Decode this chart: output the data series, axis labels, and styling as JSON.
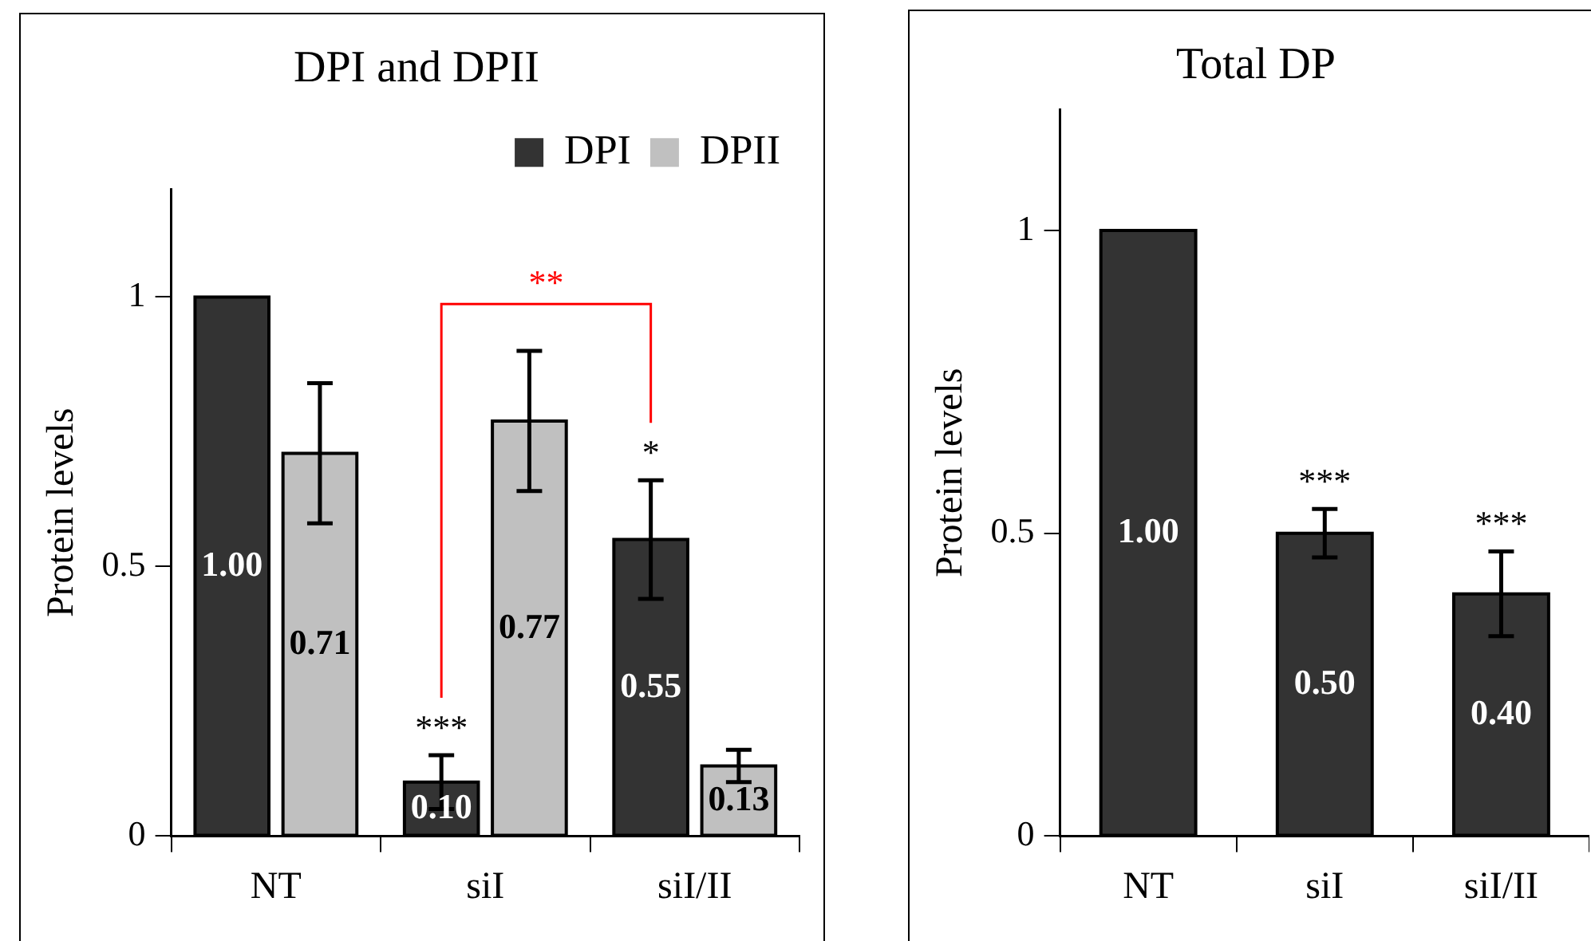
{
  "chart_data": [
    {
      "type": "bar",
      "title": "DPI and DPII",
      "ylabel": "Protein levels",
      "categories": [
        "NT",
        "siI",
        "siI/II"
      ],
      "series": [
        {
          "name": "DPI",
          "color": "#333333",
          "values": [
            1.0,
            0.1,
            0.55
          ],
          "errors": [
            0,
            0.05,
            0.11
          ],
          "value_labels": [
            "1.00",
            "0.10",
            "0.55"
          ]
        },
        {
          "name": "DPII",
          "color": "#c0c0c0",
          "values": [
            0.71,
            0.77,
            0.13
          ],
          "errors": [
            0.13,
            0.13,
            0.03
          ],
          "value_labels": [
            "0.71",
            "0.77",
            "0.13"
          ]
        }
      ],
      "ylim": [
        0,
        1.2
      ],
      "yticks": [
        0,
        0.5,
        1
      ],
      "legend": "top right",
      "grid": false,
      "annotations": [
        "**",
        {
          "text": "***",
          "x": "siI",
          "y": 0.1
        },
        {
          "text": "*",
          "x": "siI/II",
          "y": 0.55
        }
      ]
    },
    {
      "type": "bar",
      "title": "Total DP",
      "ylabel": "Protein levels",
      "categories": [
        "NT",
        "siI",
        "siI/II"
      ],
      "color": "#333333",
      "values": [
        1.0,
        0.5,
        0.4
      ],
      "errors": [
        0,
        0.04,
        0.07
      ],
      "value_labels": [
        "1.00",
        "0.50",
        "0.40"
      ],
      "ylim": [
        0,
        1.2
      ],
      "yticks": [
        0,
        0.5,
        1
      ],
      "legend": false,
      "grid": false,
      "annotations": [
        {
          "text": "***",
          "x": "siI",
          "y": 0.5
        },
        {
          "text": "***",
          "x": "siI/II",
          "y": 0.4
        }
      ]
    }
  ]
}
